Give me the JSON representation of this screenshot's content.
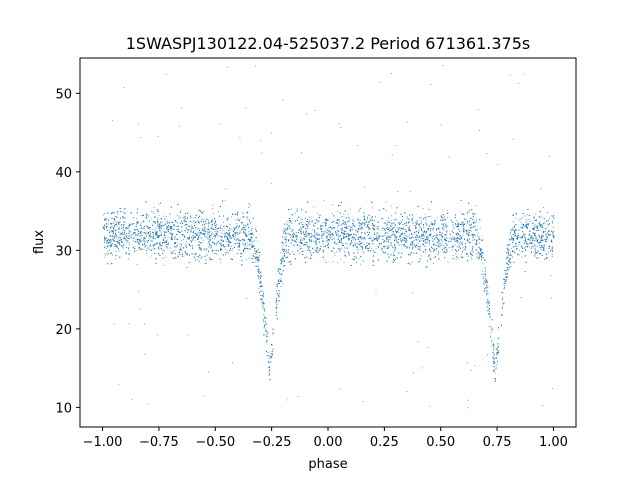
{
  "chart_data": {
    "type": "scatter",
    "title": "1SWASPJ130122.04-525037.2 Period 671361.375s",
    "xlabel": "phase",
    "ylabel": "flux",
    "xlim": [
      -1.1,
      1.1
    ],
    "ylim": [
      7.5,
      54.5
    ],
    "x_ticks": [
      -1.0,
      -0.75,
      -0.5,
      -0.25,
      0.0,
      0.25,
      0.5,
      0.75,
      1.0
    ],
    "x_tick_labels": [
      "−1.00",
      "−0.75",
      "−0.50",
      "−0.25",
      "0.00",
      "0.25",
      "0.50",
      "0.75",
      "1.00"
    ],
    "y_ticks": [
      10,
      20,
      30,
      40,
      50
    ],
    "y_tick_labels": [
      "10",
      "20",
      "30",
      "40",
      "50"
    ],
    "grid": false,
    "marker_color": "#1f77b4",
    "description": "Phase-folded light curve; dense band of points near flux 26-38 across phase -1..1, with eclipse dips reaching ~13 near phase -0.26 and 0.74, and a small gap just after each eclipse minimum near phase -0.24 and 0.76.",
    "series": [
      {
        "baseline": {
          "mean": 32,
          "sigma": 2.6,
          "min": 25,
          "max": 39
        },
        "eclipses": [
          {
            "center": -0.26,
            "half_width": 0.085,
            "depth_min": 13.0
          },
          {
            "center": 0.74,
            "half_width": 0.085,
            "depth_min": 13.0
          }
        ],
        "gaps": [
          [
            -0.245,
            -0.232
          ],
          [
            0.755,
            0.768
          ]
        ],
        "sample_points": [
          [
            -1.0,
            32.1
          ],
          [
            -0.9,
            31.8
          ],
          [
            -0.8,
            32.6
          ],
          [
            -0.7,
            31.5
          ],
          [
            -0.6,
            32.0
          ],
          [
            -0.5,
            31.9
          ],
          [
            -0.4,
            32.3
          ],
          [
            -0.33,
            29.5
          ],
          [
            -0.3,
            24.0
          ],
          [
            -0.28,
            18.0
          ],
          [
            -0.26,
            14.5
          ],
          [
            -0.24,
            19.5
          ],
          [
            -0.22,
            26.0
          ],
          [
            -0.2,
            31.0
          ],
          [
            -0.1,
            32.0
          ],
          [
            0.0,
            31.8
          ],
          [
            0.1,
            32.2
          ],
          [
            0.2,
            31.9
          ],
          [
            0.3,
            32.4
          ],
          [
            0.4,
            31.7
          ],
          [
            0.5,
            32.1
          ],
          [
            0.6,
            32.0
          ],
          [
            0.67,
            29.8
          ],
          [
            0.7,
            24.5
          ],
          [
            0.72,
            18.0
          ],
          [
            0.74,
            14.5
          ],
          [
            0.76,
            19.0
          ],
          [
            0.78,
            26.0
          ],
          [
            0.8,
            31.0
          ],
          [
            0.9,
            32.2
          ],
          [
            1.0,
            31.9
          ]
        ],
        "outliers": [
          [
            -0.65,
            48.2
          ],
          [
            -0.72,
            52.5
          ],
          [
            -0.48,
            46.1
          ],
          [
            -0.3,
            44.0
          ],
          [
            0.28,
            52.6
          ],
          [
            0.35,
            46.4
          ],
          [
            0.5,
            46.0
          ],
          [
            -0.55,
            11.5
          ],
          [
            -0.8,
            10.5
          ],
          [
            0.05,
            12.4
          ],
          [
            0.62,
            10.0
          ],
          [
            0.95,
            10.3
          ],
          [
            0.82,
            44.2
          ],
          [
            -0.12,
            42.5
          ],
          [
            0.13,
            43.4
          ],
          [
            -0.93,
            13.0
          ],
          [
            -0.18,
            11.0
          ],
          [
            0.45,
            10.2
          ],
          [
            0.3,
            43.4
          ],
          [
            0.98,
            42.0
          ]
        ]
      }
    ]
  }
}
